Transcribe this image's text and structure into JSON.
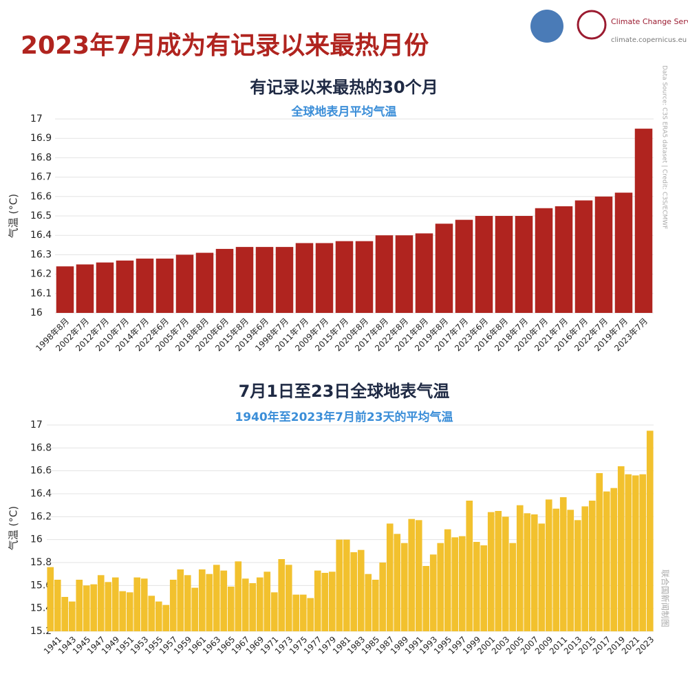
{
  "header": {
    "title": "2023年7月成为有记录以来最热月份",
    "logo_name": "Climate Change Service",
    "logo_url": "climate.copernicus.eu",
    "credit": "Data Source: C3S ERA5 dataset | Credit: C3S/ECMWF",
    "footer_credit": "联合国新闻制图"
  },
  "chart_data": [
    {
      "type": "bar",
      "title": "有记录以来最热的30个月",
      "subtitle": "全球地表月平均气温",
      "y_label": "气温 (°C)",
      "color": "#b0241f",
      "grid": true,
      "categories": [
        "1998年8月",
        "2002年7月",
        "2012年7月",
        "2010年7月",
        "2014年7月",
        "2022年6月",
        "2005年7月",
        "2018年8月",
        "2020年6月",
        "2015年8月",
        "2019年6月",
        "1998年7月",
        "2011年7月",
        "2009年7月",
        "2015年7月",
        "2020年8月",
        "2017年8月",
        "2022年8月",
        "2021年8月",
        "2019年8月",
        "2017年7月",
        "2023年6月",
        "2016年8月",
        "2018年7月",
        "2020年7月",
        "2021年7月",
        "2016年7月",
        "2022年7月",
        "2019年7月",
        "2023年7月"
      ],
      "values": [
        16.24,
        16.25,
        16.26,
        16.27,
        16.28,
        16.28,
        16.3,
        16.31,
        16.33,
        16.34,
        16.34,
        16.34,
        16.36,
        16.36,
        16.37,
        16.37,
        16.4,
        16.4,
        16.41,
        16.46,
        16.48,
        16.5,
        16.5,
        16.5,
        16.54,
        16.55,
        16.58,
        16.6,
        16.62,
        16.95
      ],
      "ylim": [
        16,
        17
      ],
      "yticks": [
        16,
        16.1,
        16.2,
        16.3,
        16.4,
        16.5,
        16.6,
        16.7,
        16.8,
        16.9,
        17
      ]
    },
    {
      "type": "bar",
      "title": "7月1日至23日全球地表气温",
      "subtitle": "1940年至2023年7月前23天的平均气温",
      "y_label": "气温 (°C)",
      "color": "#f2c12e",
      "grid": true,
      "categories": [
        null,
        "1941",
        null,
        "1943",
        null,
        "1945",
        null,
        "1947",
        null,
        "1949",
        null,
        "1951",
        null,
        "1953",
        null,
        "1955",
        null,
        "1957",
        null,
        "1959",
        null,
        "1961",
        null,
        "1963",
        null,
        "1965",
        null,
        "1967",
        null,
        "1969",
        null,
        "1971",
        null,
        "1973",
        null,
        "1975",
        null,
        "1977",
        null,
        "1979",
        null,
        "1981",
        null,
        "1983",
        null,
        "1985",
        null,
        "1987",
        null,
        "1989",
        null,
        "1991",
        null,
        "1993",
        null,
        "1995",
        null,
        "1997",
        null,
        "1999",
        null,
        "2001",
        null,
        "2003",
        null,
        "2005",
        null,
        "2007",
        null,
        "2009",
        null,
        "2011",
        null,
        "2013",
        null,
        "2015",
        null,
        "2017",
        null,
        "2019",
        null,
        "2021",
        null,
        "2023"
      ],
      "values": [
        15.76,
        15.65,
        15.5,
        15.46,
        15.65,
        15.6,
        15.61,
        15.69,
        15.63,
        15.67,
        15.55,
        15.54,
        15.67,
        15.66,
        15.51,
        15.46,
        15.43,
        15.65,
        15.74,
        15.69,
        15.58,
        15.74,
        15.7,
        15.78,
        15.73,
        15.59,
        15.81,
        15.66,
        15.62,
        15.67,
        15.72,
        15.54,
        15.83,
        15.78,
        15.52,
        15.52,
        15.49,
        15.73,
        15.71,
        15.72,
        16.0,
        16.0,
        15.89,
        15.91,
        15.7,
        15.65,
        15.8,
        16.14,
        16.05,
        15.97,
        16.18,
        16.17,
        15.77,
        15.87,
        15.97,
        16.09,
        16.02,
        16.03,
        16.34,
        15.98,
        15.95,
        16.24,
        16.25,
        16.2,
        15.97,
        16.3,
        16.23,
        16.22,
        16.14,
        16.35,
        16.27,
        16.37,
        16.26,
        16.17,
        16.29,
        16.34,
        16.58,
        16.42,
        16.45,
        16.64,
        16.57,
        16.56,
        16.57,
        16.95
      ],
      "ylim": [
        15.2,
        17
      ],
      "yticks": [
        15.2,
        15.4,
        15.6,
        15.8,
        16,
        16.2,
        16.4,
        16.6,
        16.8,
        17
      ]
    }
  ]
}
